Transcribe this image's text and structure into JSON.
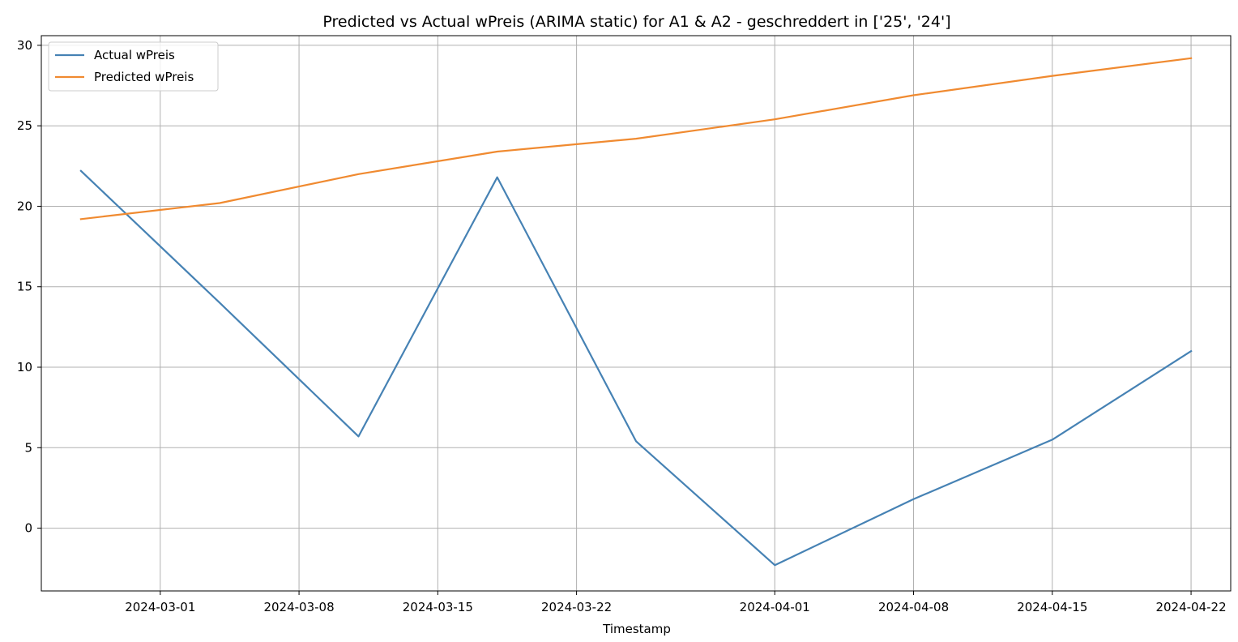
{
  "chart_data": {
    "type": "line",
    "title": "Predicted vs Actual wPreis (ARIMA static) for A1 & A2 -  geschreddert in ['25', '24']",
    "xlabel": "Timestamp",
    "ylabel": "",
    "x_ticks": [
      "2024-03-01",
      "2024-03-08",
      "2024-03-15",
      "2024-03-22",
      "2024-04-01",
      "2024-04-08",
      "2024-04-15",
      "2024-04-22"
    ],
    "x_tick_dates": [
      "2024-03-01",
      "2024-03-08",
      "2024-03-15",
      "2024-03-22",
      "2024-04-01",
      "2024-04-08",
      "2024-04-15",
      "2024-04-22"
    ],
    "y_ticks": [
      0,
      5,
      10,
      15,
      20,
      25,
      30
    ],
    "xlim": [
      "2024-02-24",
      "2024-04-24"
    ],
    "ylim": [
      -3.9,
      30.6
    ],
    "grid": true,
    "legend_position": "top-left",
    "x": [
      "2024-02-26",
      "2024-03-04",
      "2024-03-11",
      "2024-03-18",
      "2024-03-25",
      "2024-04-01",
      "2024-04-08",
      "2024-04-15",
      "2024-04-22"
    ],
    "series": [
      {
        "name": "Actual wPreis",
        "color": "#4682b4",
        "values": [
          22.2,
          14.0,
          5.7,
          21.8,
          5.4,
          -2.3,
          1.8,
          5.5,
          11.0
        ]
      },
      {
        "name": "Predicted wPreis",
        "color": "#f08a30",
        "values": [
          19.2,
          20.2,
          22.0,
          23.4,
          24.2,
          25.4,
          26.9,
          28.1,
          29.2
        ]
      }
    ]
  }
}
